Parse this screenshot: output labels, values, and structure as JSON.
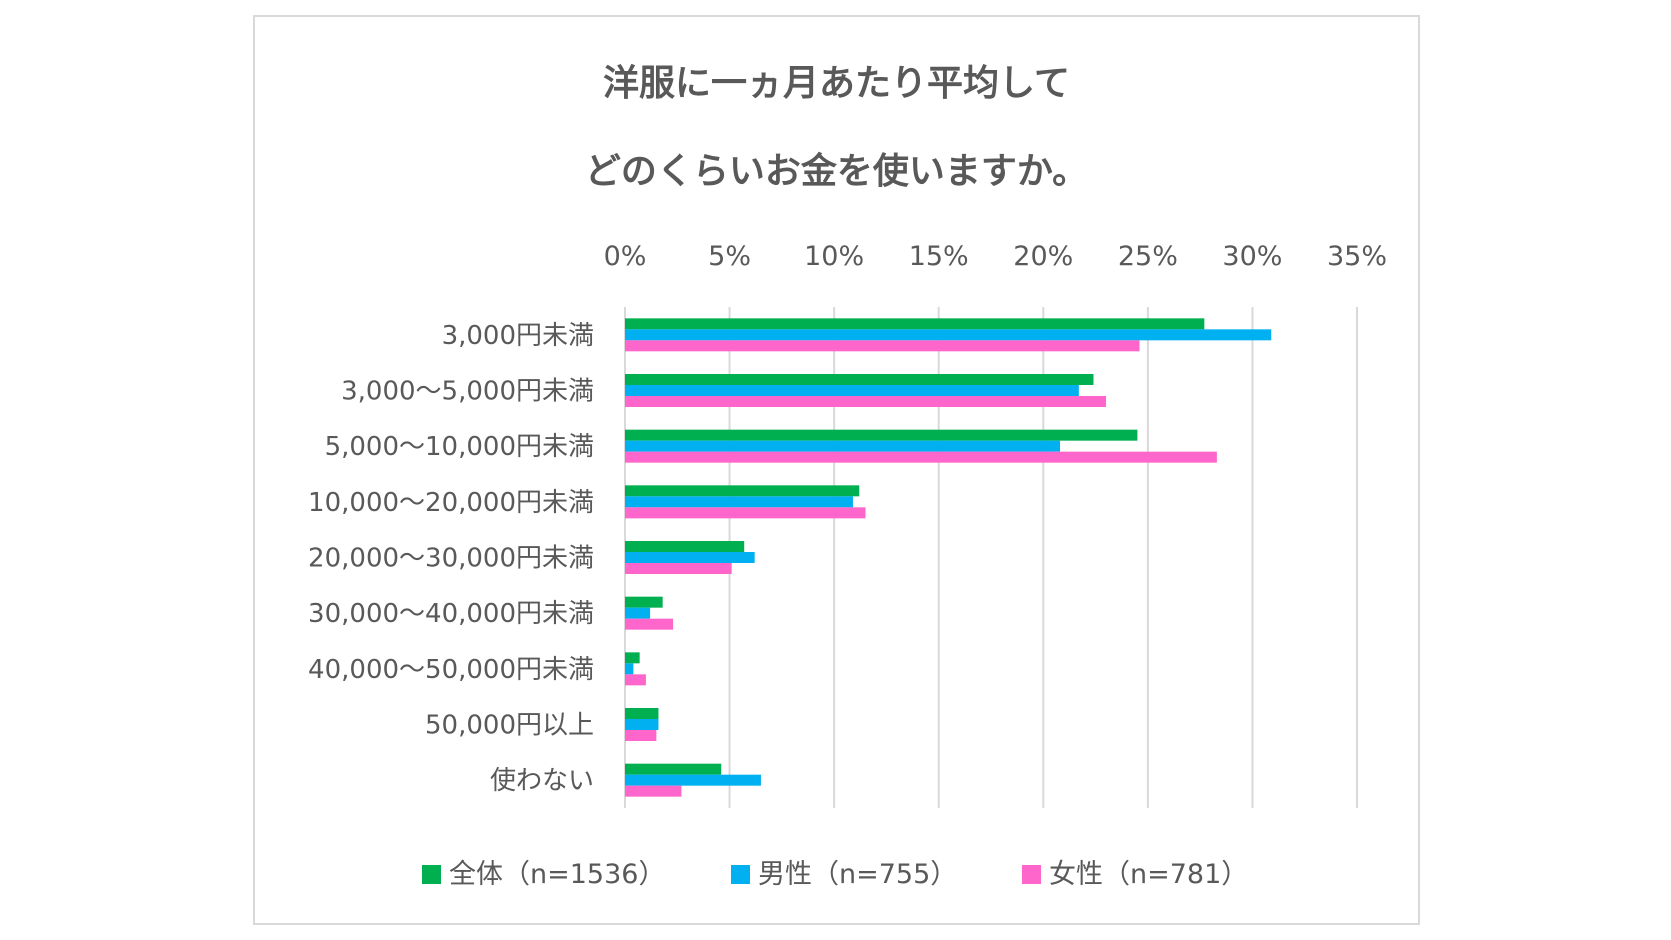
{
  "chart_data": {
    "type": "bar",
    "orientation": "horizontal",
    "title": [
      "洋服に一ヵ月あたり平均して",
      "どのくらいお金を使いますか。"
    ],
    "categories": [
      "3,000円未満",
      "3,000～5,000円未満",
      "5,000～10,000円未満",
      "10,000～20,000円未満",
      "20,000～30,000円未満",
      "30,000～40,000円未満",
      "40,000～50,000円未満",
      "50,000円以上",
      "使わない"
    ],
    "series": [
      {
        "name": "全体（n=1536）",
        "color": "#00b050",
        "values": [
          27.7,
          22.4,
          24.5,
          11.2,
          5.7,
          1.8,
          0.7,
          1.6,
          4.6
        ]
      },
      {
        "name": "男性（n=755）",
        "color": "#00b0f0",
        "values": [
          30.9,
          21.7,
          20.8,
          10.9,
          6.2,
          1.2,
          0.4,
          1.6,
          6.5
        ]
      },
      {
        "name": "女性（n=781）",
        "color": "#ff66cc",
        "values": [
          24.6,
          23.0,
          28.3,
          11.5,
          5.1,
          2.3,
          1.0,
          1.5,
          2.7
        ]
      }
    ],
    "xlim": [
      0,
      35
    ],
    "xticks": [
      "0%",
      "5%",
      "10%",
      "15%",
      "20%",
      "25%",
      "30%",
      "35%"
    ],
    "xaxis_position": "top",
    "grid": true,
    "legend_position": "bottom"
  }
}
